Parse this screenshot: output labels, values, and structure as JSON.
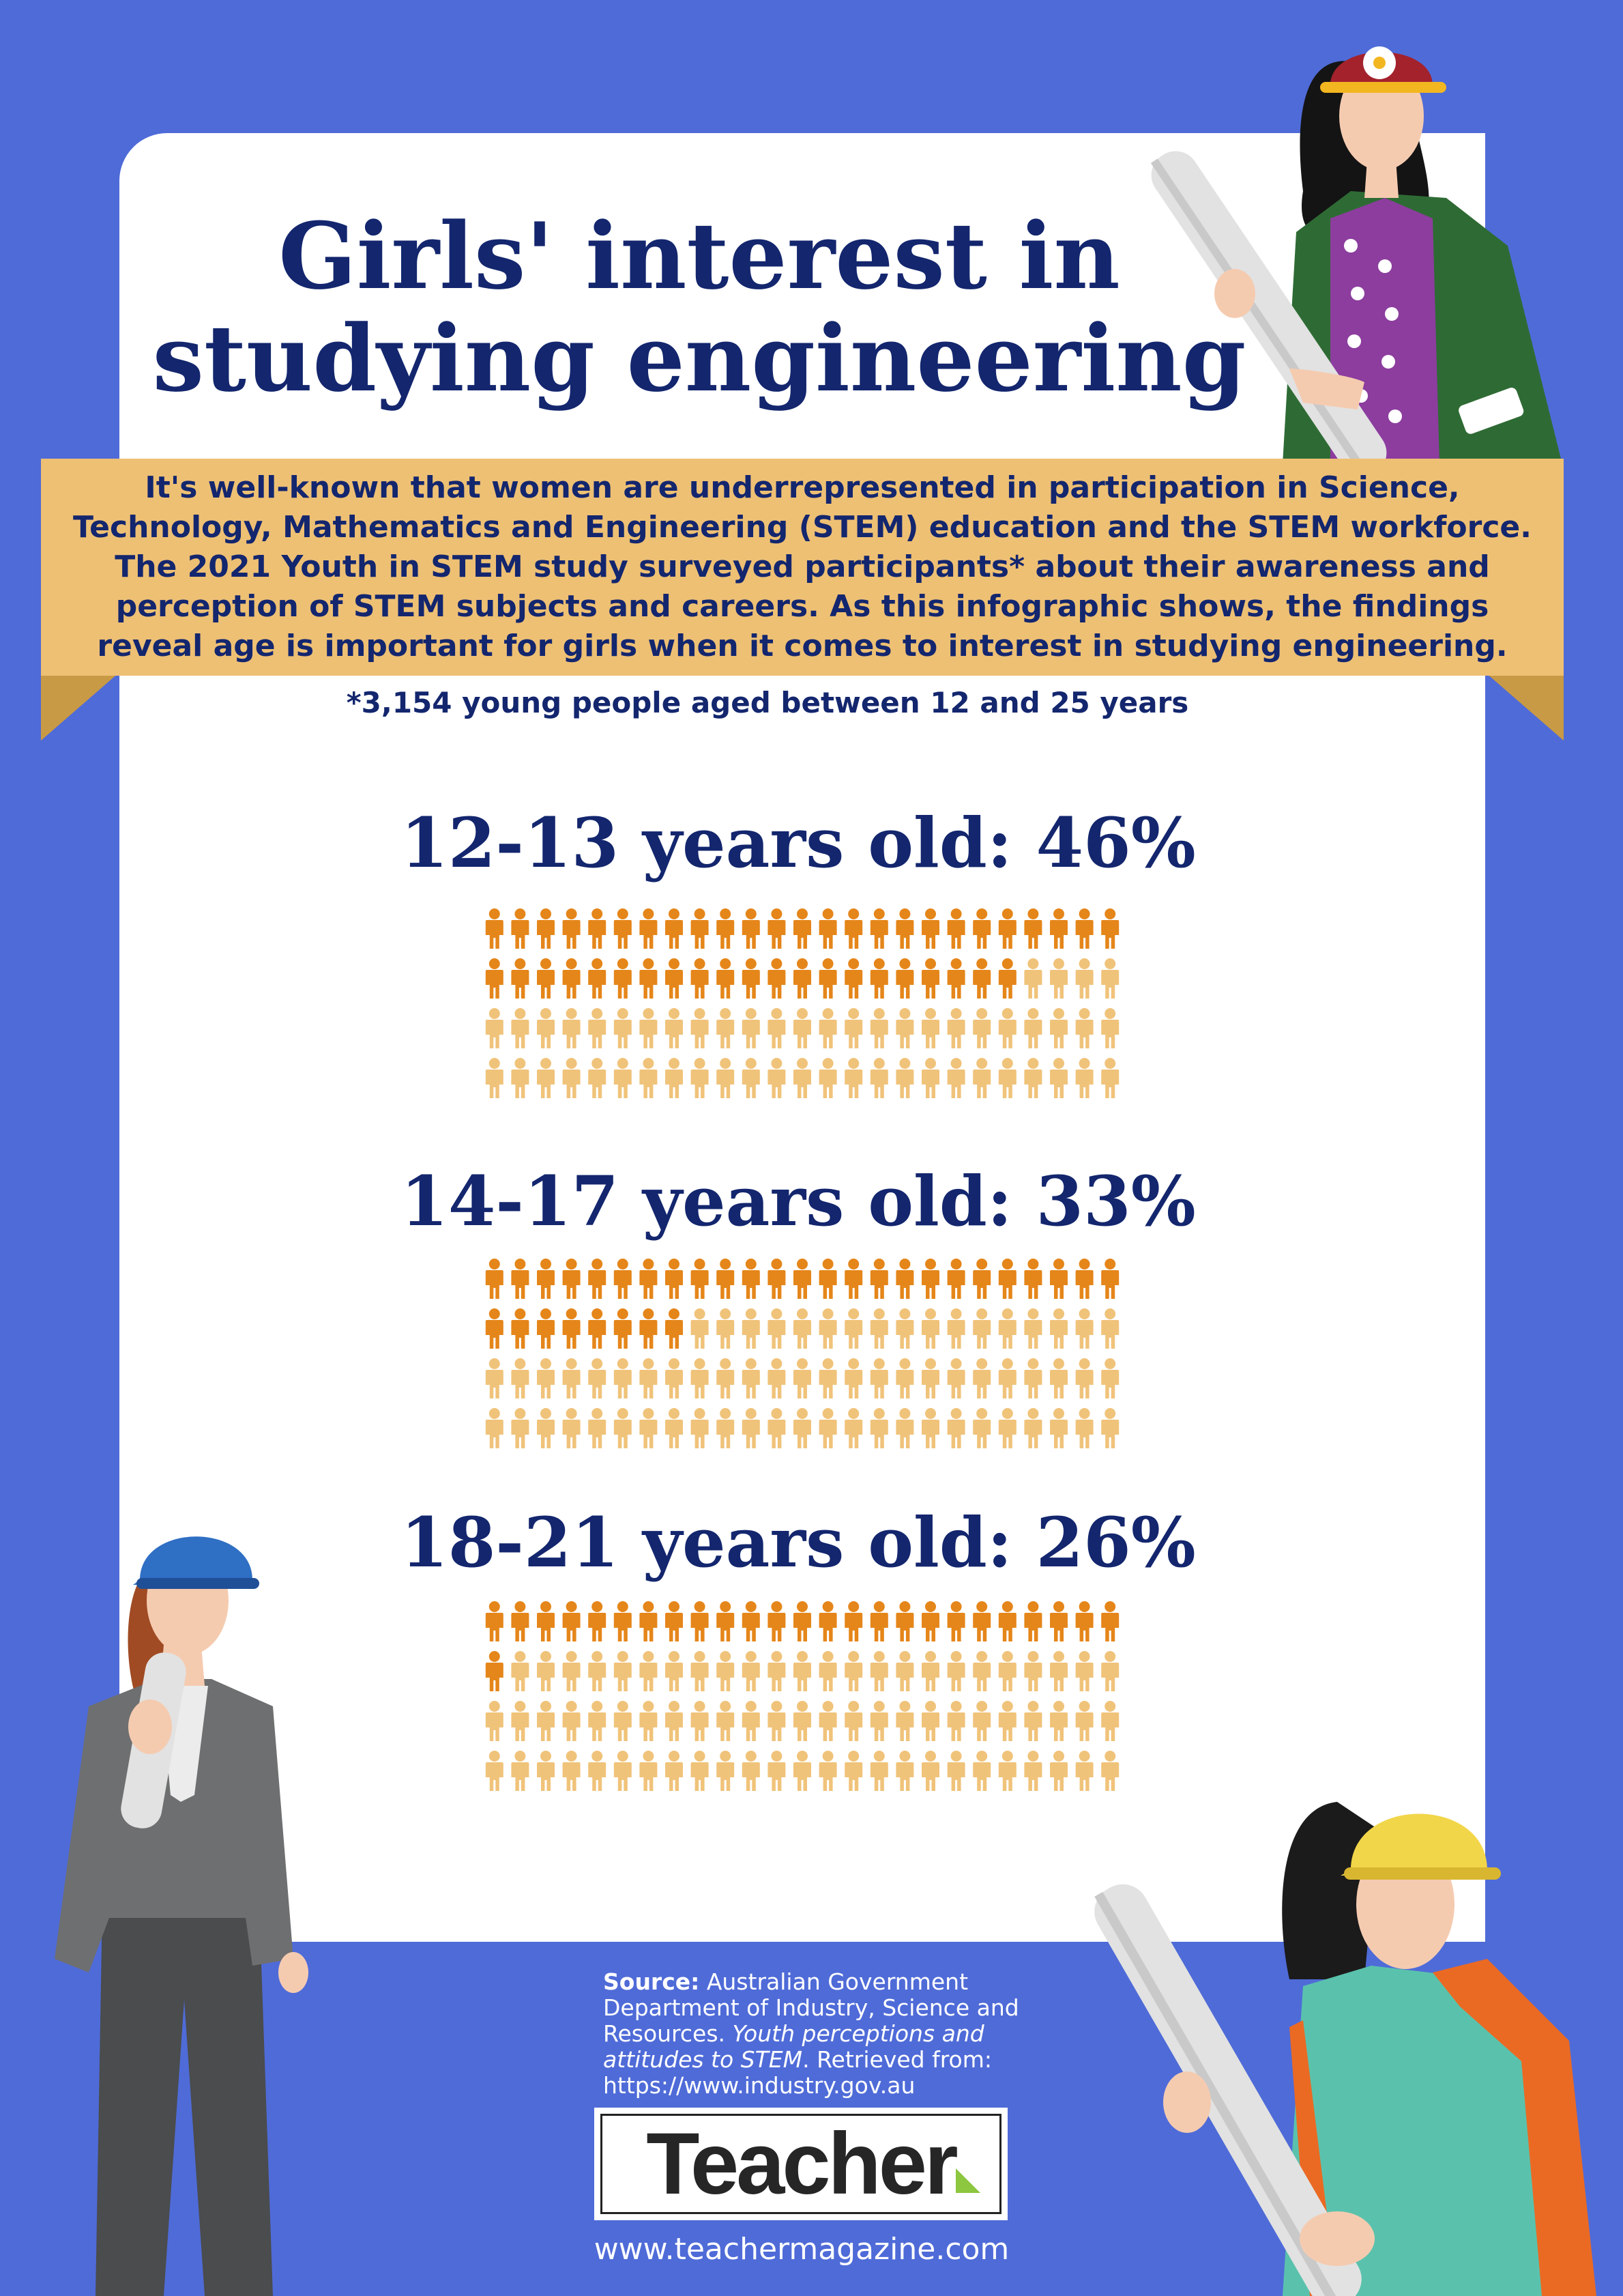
{
  "title": "Girls' interest in studying engineering",
  "intro": "It's well-known that women are underrepresented in participation in Science, Technology, Mathematics and Engineering (STEM) education and the STEM workforce. The 2021 Youth in STEM study surveyed participants* about their awareness and perception of STEM subjects and careers. As this infographic shows, the findings reveal age is important for girls when it comes to interest in studying engineering.",
  "footnote": "*3,154 young people aged between 12 and 25 years",
  "colors": {
    "background": "#4f6bd8",
    "navy": "#13266e",
    "ribbon": "#eec074",
    "highlight": "#e5861a",
    "base": "#f0c37a"
  },
  "chart_data": [
    {
      "type": "pictogram",
      "label": "12-13 years old: 46%",
      "category": "12-13 years old",
      "value": 46,
      "unit": "%",
      "total_icons": 100
    },
    {
      "type": "pictogram",
      "label": "14-17 years old: 33%",
      "category": "14-17 years old",
      "value": 33,
      "unit": "%",
      "total_icons": 100
    },
    {
      "type": "pictogram",
      "label": "18-21 years old: 26%",
      "category": "18-21 years old",
      "value": 26,
      "unit": "%",
      "total_icons": 100
    }
  ],
  "source": {
    "bold": "Source:",
    "plain": " Australian Government Department of Industry, Science and Resources. ",
    "italic": "Youth perceptions and attitudes to STEM",
    "tail": ". Retrieved from: https://www.industry.gov.au"
  },
  "logo": "Teacher",
  "url": "www.teachermagazine.com",
  "icons": [
    "person-icon",
    "hard-hat-icon",
    "blueprint-roll-icon"
  ]
}
